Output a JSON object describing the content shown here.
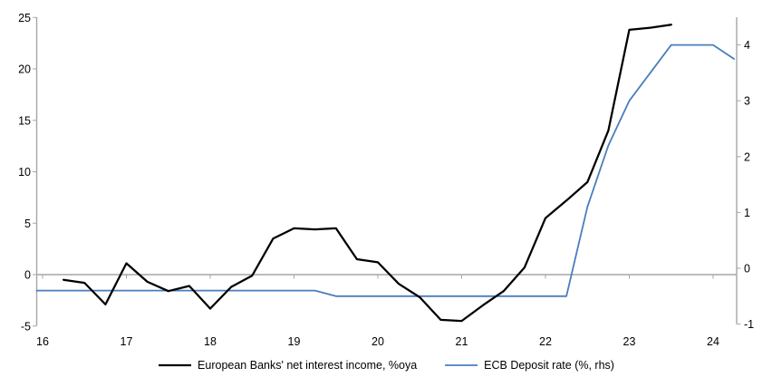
{
  "chart_data": {
    "type": "line",
    "title": "",
    "grid": false,
    "legend_position": "bottom",
    "axis_color": "#A6A6A6",
    "text_color": "#000000",
    "x_axis": {
      "tick_values": [
        16,
        17,
        18,
        19,
        20,
        21,
        22,
        23,
        24
      ],
      "tick_labels": [
        "16",
        "17",
        "18",
        "19",
        "20",
        "21",
        "22",
        "23",
        "24"
      ],
      "min": 15.9,
      "max": 24.45
    },
    "left_axis": {
      "ticks": [
        25,
        20,
        15,
        10,
        5,
        0,
        -5
      ],
      "min": -5,
      "max": 25,
      "zero_line": true
    },
    "right_axis": {
      "ticks": [
        4,
        3,
        2,
        1,
        0,
        -1
      ],
      "min": -1,
      "max": 4.5
    },
    "series": [
      {
        "name": "European Banks' net interest income, %oya",
        "axis": "left",
        "color": "#000000",
        "stroke_width": 2.25,
        "x": [
          16.25,
          16.5,
          16.75,
          17.0,
          17.25,
          17.5,
          17.75,
          18.0,
          18.25,
          18.5,
          18.75,
          19.0,
          19.25,
          19.5,
          19.75,
          20.0,
          20.25,
          20.5,
          20.75,
          21.0,
          21.25,
          21.5,
          21.75,
          22.0,
          22.25,
          22.5,
          22.75,
          23.0,
          23.25,
          23.5
        ],
        "values": [
          -0.5,
          -0.8,
          -2.9,
          1.1,
          -0.7,
          -1.6,
          -1.1,
          -3.3,
          -1.2,
          -0.1,
          3.5,
          4.5,
          4.4,
          4.5,
          1.5,
          1.2,
          -0.9,
          -2.2,
          -4.4,
          -4.5,
          -3.0,
          -1.6,
          0.7,
          5.5,
          7.2,
          9.0,
          14.0,
          23.8,
          24.0,
          24.3
        ]
      },
      {
        "name": "ECB Deposit rate (%, rhs)",
        "axis": "right",
        "color": "#4A7EBB",
        "stroke_width": 1.8,
        "x": [
          15.93,
          19.25,
          19.5,
          22.25,
          22.5,
          22.75,
          23.0,
          23.25,
          23.5,
          24.0,
          24.25
        ],
        "values": [
          -0.4,
          -0.4,
          -0.5,
          -0.5,
          1.1,
          2.2,
          3.0,
          3.5,
          4.0,
          4.0,
          3.75
        ]
      }
    ]
  }
}
